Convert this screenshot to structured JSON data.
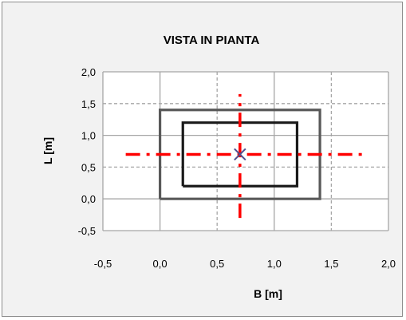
{
  "chart_data": {
    "type": "scatter",
    "title": "VISTA IN PIANTA",
    "xlabel": "B [m]",
    "ylabel": "L [m]",
    "xlim": [
      -0.5,
      2.0
    ],
    "ylim": [
      -0.5,
      2.0
    ],
    "x_ticks": [
      -0.5,
      0.0,
      0.5,
      1.0,
      1.5,
      2.0
    ],
    "y_ticks": [
      -0.5,
      0.0,
      0.5,
      1.0,
      1.5,
      2.0
    ],
    "x_tick_labels": [
      "-0,5",
      "0,0",
      "0,5",
      "1,0",
      "1,5",
      "2,0"
    ],
    "y_tick_labels": [
      "-0,5",
      "0,0",
      "0,5",
      "1,0",
      "1,5",
      "2,0"
    ],
    "grid": true,
    "colors": {
      "plot_bg": "#ffffff",
      "frame_bg": "#f2f2f2",
      "grid_solid": "#a6a6a6",
      "grid_dashed": "#a6a6a6",
      "outer_rect": "#595959",
      "inner_rect": "#1a1a1a",
      "axis_line": "#ff0000",
      "center_marker": "#4f4f8f"
    },
    "series": [
      {
        "kind": "polyline",
        "style": "outer",
        "points": [
          [
            0.0,
            0.0
          ],
          [
            1.4,
            0.0
          ],
          [
            1.4,
            1.4
          ],
          [
            0.0,
            1.4
          ],
          [
            0.0,
            0.0
          ]
        ]
      },
      {
        "kind": "polyline",
        "style": "inner",
        "points": [
          [
            0.2,
            0.2
          ],
          [
            1.2,
            0.2
          ],
          [
            1.2,
            1.2
          ],
          [
            0.2,
            1.2
          ],
          [
            0.2,
            0.2
          ]
        ]
      },
      {
        "kind": "dashdot",
        "style": "axis",
        "points": [
          [
            -0.3,
            0.7
          ],
          [
            1.8,
            0.7
          ]
        ]
      },
      {
        "kind": "dashdot",
        "style": "axis",
        "points": [
          [
            0.7,
            -0.3
          ],
          [
            0.7,
            1.65
          ]
        ]
      },
      {
        "kind": "marker",
        "style": "center",
        "points": [
          [
            0.7,
            0.7
          ]
        ]
      }
    ]
  }
}
